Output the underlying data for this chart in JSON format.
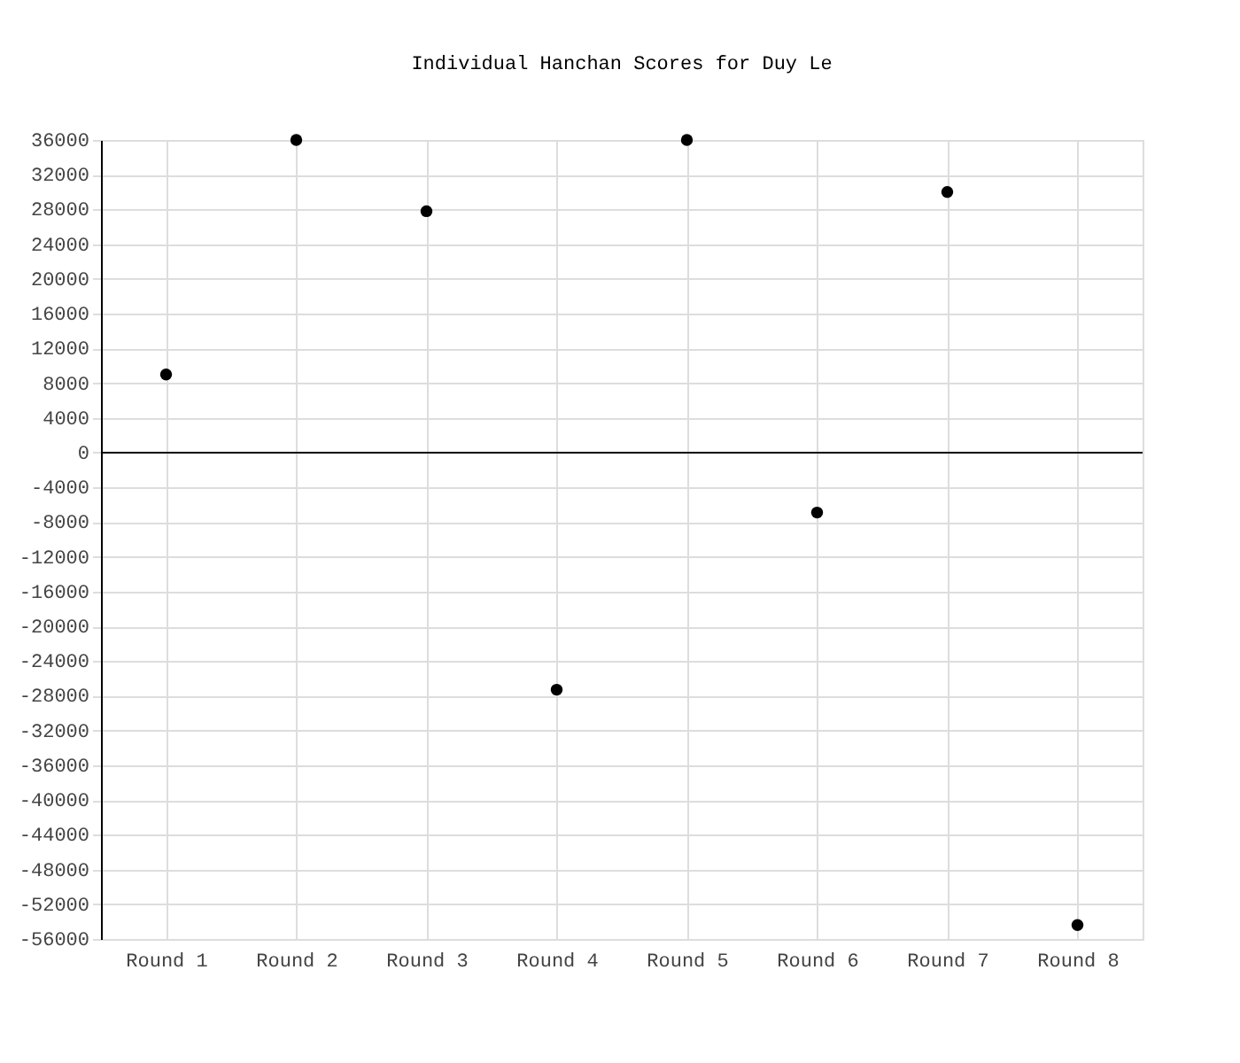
{
  "chart_data": {
    "type": "scatter",
    "title": "Individual Hanchan Scores for Duy Le",
    "categories": [
      "Round 1",
      "Round 2",
      "Round 3",
      "Round 4",
      "Round 5",
      "Round 6",
      "Round 7",
      "Round 8"
    ],
    "series": [
      {
        "color": "#000000",
        "values": [
          9000,
          36000,
          27800,
          -27300,
          36000,
          -6900,
          30000,
          -54400
        ]
      }
    ],
    "ylim": [
      -56000,
      36000
    ],
    "yticks": [
      -56000,
      -52000,
      -48000,
      -44000,
      -40000,
      -36000,
      -32000,
      -28000,
      -24000,
      -20000,
      -16000,
      -12000,
      -8000,
      -4000,
      0,
      4000,
      8000,
      12000,
      16000,
      20000,
      24000,
      28000,
      32000,
      36000
    ],
    "ref_lines": [
      {
        "axis": "y",
        "value": 0,
        "color": "#000000"
      }
    ],
    "grid": true,
    "marker": "circle",
    "legend": false
  }
}
